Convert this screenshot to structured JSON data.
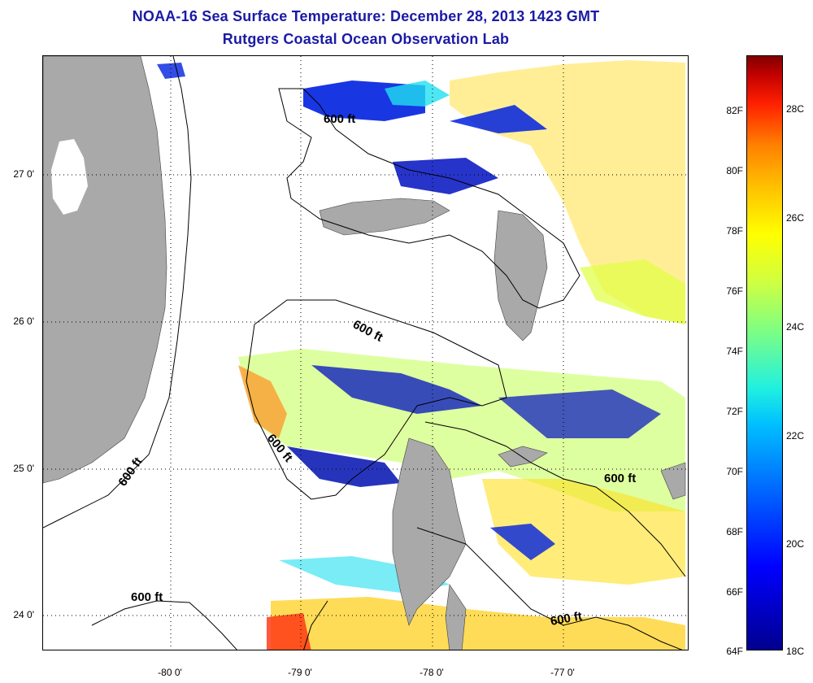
{
  "title": {
    "line1": "NOAA-16 Sea Surface Temperature:  December 28, 2013 1423 GMT",
    "line2": "Rutgers Coastal Ocean Observation Lab"
  },
  "map": {
    "lat_labels": [
      "27 0'",
      "26 0'",
      "25 0'",
      "24 0'"
    ],
    "lon_labels": [
      "-80 0'",
      "-79 0'",
      "-78 0'",
      "-77 0'"
    ],
    "contour_label": "600 ft",
    "land_color": "#a9a9a9",
    "contour_color": "#000000"
  },
  "colorbar": {
    "fahrenheit_labels": [
      "82F",
      "80F",
      "78F",
      "76F",
      "74F",
      "72F",
      "70F",
      "68F",
      "66F",
      "64F"
    ],
    "celsius_labels": [
      "28C",
      "26C",
      "24C",
      "22C",
      "20C",
      "18C"
    ],
    "colors": [
      "#00008f",
      "#0000ff",
      "#00c0ff",
      "#80ff80",
      "#ffff00",
      "#ff8000",
      "#c00000",
      "#800000"
    ]
  }
}
